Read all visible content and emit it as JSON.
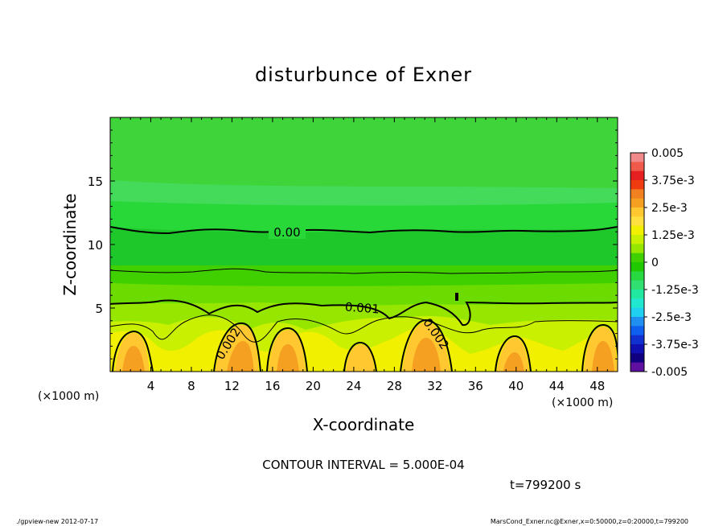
{
  "chart_data": {
    "type": "heatmap",
    "title": "disturbunce of Exner",
    "xlabel": "X-coordinate",
    "ylabel": "Z-coordinate",
    "x_unit": "(×1000 m)",
    "x_unit_right": "(×1000 m)",
    "xlim": [
      0,
      50
    ],
    "ylim": [
      0,
      20
    ],
    "x_ticks": [
      4,
      8,
      12,
      16,
      20,
      24,
      28,
      32,
      36,
      40,
      44,
      48
    ],
    "y_ticks": [
      5,
      10,
      15
    ],
    "grid": false,
    "contour_labels": [
      "0.00",
      "0.001",
      "0.002",
      "0.002"
    ],
    "contour_interval_text": "CONTOUR INTERVAL = 5.000E-04",
    "time_text": "t=799200 s",
    "colorbar": {
      "labels": [
        "0.005",
        "3.75e-3",
        "2.5e-3",
        "1.25e-3",
        "0",
        "-1.25e-3",
        "-2.5e-3",
        "-3.75e-3",
        "-0.005"
      ],
      "colors": [
        "#f08a8a",
        "#f05a4a",
        "#e62020",
        "#f03a10",
        "#f08020",
        "#f5a020",
        "#ffc830",
        "#ffe040",
        "#f0f000",
        "#c8f000",
        "#96e600",
        "#40d000",
        "#20c800",
        "#28d840",
        "#30e070",
        "#20e8a0",
        "#20e8d0",
        "#20d0f0",
        "#2090f0",
        "#1060f0",
        "#1030d0",
        "#1010b0",
        "#100080",
        "#6010a0"
      ]
    }
  },
  "footer": {
    "left": "./gpview-new  2012-07-17",
    "right": "MarsCond_Exner.nc@Exner,x=0:50000,z=0:20000,t=799200"
  }
}
